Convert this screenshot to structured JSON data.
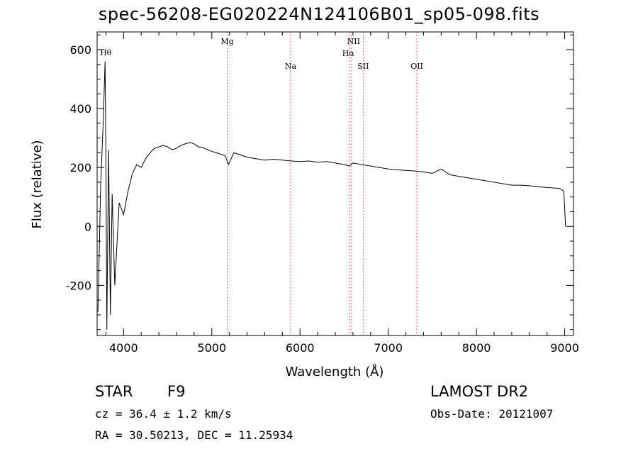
{
  "title": "spec-56208-EG020224N124106B01_sp05-098.fits",
  "chart_data": {
    "type": "line",
    "title": "spec-56208-EG020224N124106B01_sp05-098.fits",
    "xlabel": "Wavelength (Å)",
    "ylabel": "Flux (relative)",
    "xlim": [
      3700,
      9100
    ],
    "ylim": [
      -370,
      660
    ],
    "xticks": [
      4000,
      5000,
      6000,
      7000,
      8000,
      9000
    ],
    "yticks": [
      -200,
      0,
      200,
      400,
      600
    ],
    "grid": false,
    "series": [
      {
        "x": [
          3710,
          3740,
          3770,
          3790,
          3800,
          3810,
          3830,
          3850,
          3870,
          3900,
          3950,
          4000,
          4050,
          4100,
          4150,
          4200,
          4250,
          4300,
          4350,
          4400,
          4450,
          4500,
          4550,
          4600,
          4650,
          4700,
          4750,
          4800,
          4850,
          4900,
          4950,
          5000,
          5050,
          5100,
          5150,
          5190,
          5250,
          5300,
          5350,
          5400,
          5500,
          5600,
          5700,
          5800,
          5900,
          6000,
          6100,
          6200,
          6300,
          6400,
          6500,
          6563,
          6600,
          6700,
          6800,
          6900,
          7000,
          7100,
          7200,
          7300,
          7400,
          7500,
          7600,
          7700,
          7800,
          7900,
          8000,
          8100,
          8200,
          8300,
          8400,
          8500,
          8600,
          8700,
          8800,
          8900,
          8950,
          8990,
          9000,
          9010
        ],
        "y": [
          -290,
          140,
          360,
          560,
          240,
          -350,
          260,
          -300,
          110,
          -200,
          80,
          40,
          120,
          180,
          210,
          200,
          230,
          250,
          265,
          270,
          275,
          270,
          260,
          265,
          275,
          280,
          285,
          280,
          270,
          268,
          260,
          255,
          250,
          245,
          240,
          210,
          250,
          245,
          240,
          235,
          230,
          225,
          228,
          225,
          222,
          220,
          222,
          218,
          220,
          215,
          210,
          205,
          215,
          210,
          205,
          200,
          195,
          192,
          190,
          188,
          185,
          180,
          195,
          175,
          170,
          165,
          160,
          155,
          150,
          145,
          140,
          140,
          138,
          135,
          132,
          130,
          128,
          120,
          60,
          0
        ]
      }
    ],
    "line_markers": [
      {
        "label": "Hθ",
        "x": 3798
      },
      {
        "label": "Mg",
        "x": 5175
      },
      {
        "label": "Na",
        "x": 5893
      },
      {
        "label": "NII",
        "x": 6583
      },
      {
        "label": "Hα",
        "x": 6563
      },
      {
        "label": "SII",
        "x": 6716
      },
      {
        "label": "OII",
        "x": 7325
      }
    ]
  },
  "info": {
    "class": "STAR",
    "subclass": "F9",
    "survey": "LAMOST DR2",
    "cz": "cz = 36.4 ± 1.2 km/s",
    "obsdate": "Obs-Date: 20121007",
    "coords": "RA =  30.50213, DEC =  11.25934"
  }
}
